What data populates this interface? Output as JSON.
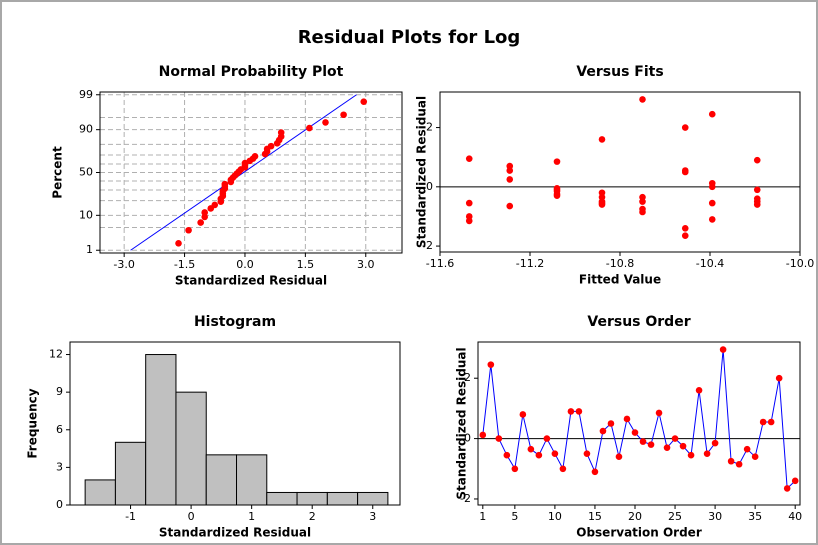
{
  "title": "Residual Plots for Log",
  "chart_data": [
    {
      "type": "probability",
      "title": "Normal Probability Plot",
      "x_label": "Standardized Residual",
      "y_label": "Percent",
      "x": [
        -1.65,
        -1.4,
        -1.1,
        -1.0,
        -1.0,
        -0.85,
        -0.75,
        -0.6,
        -0.6,
        -0.55,
        -0.55,
        -0.55,
        -0.5,
        -0.5,
        -0.5,
        -0.35,
        -0.35,
        -0.3,
        -0.25,
        -0.2,
        -0.15,
        -0.1,
        0.0,
        0.0,
        0.0,
        0.12,
        0.2,
        0.25,
        0.5,
        0.55,
        0.55,
        0.65,
        0.8,
        0.85,
        0.9,
        0.9,
        1.6,
        2.0,
        2.45,
        2.95
      ],
      "values": [
        1.7,
        4.2,
        6.7,
        9.2,
        11.6,
        14.1,
        16.6,
        19.1,
        21.5,
        24.0,
        26.5,
        29.0,
        31.4,
        33.9,
        36.4,
        38.9,
        41.3,
        43.8,
        46.3,
        48.8,
        51.2,
        53.7,
        56.2,
        58.7,
        61.1,
        63.6,
        66.1,
        68.6,
        71.0,
        73.5,
        76.0,
        78.5,
        80.9,
        83.4,
        85.9,
        88.4,
        90.8,
        93.3,
        95.8,
        98.3
      ],
      "color": "#ff0000",
      "fit_line": {
        "x": [
          -2.84,
          2.77
        ],
        "y": [
          1,
          99
        ],
        "color": "#0000ff"
      },
      "xlim": [
        -3.6,
        3.9
      ],
      "xticks": [
        {
          "value": -3,
          "label": "-3.0"
        },
        -1.5,
        {
          "value": 0,
          "label": "0.0"
        },
        1.5,
        {
          "value": 3,
          "label": "3.0"
        }
      ],
      "yscale": "probit",
      "ylim": [
        0.8,
        99.2
      ],
      "yticks": [
        1,
        10,
        50,
        90,
        99
      ],
      "y_minor_grid": [
        5,
        20,
        30,
        40,
        60,
        70,
        80,
        95
      ],
      "grid": true
    },
    {
      "type": "scatter",
      "title": "Versus Fits",
      "x_label": "Fitted Value",
      "y_label": "Standardized Residual",
      "x": [
        -11.47,
        -11.47,
        -11.47,
        -11.47,
        -11.29,
        -11.29,
        -11.29,
        -11.29,
        -11.08,
        -11.08,
        -11.08,
        -11.08,
        -11.08,
        -11.08,
        -10.88,
        -10.88,
        -10.88,
        -10.88,
        -10.88,
        -10.88,
        -10.7,
        -10.7,
        -10.7,
        -10.7,
        -10.7,
        -10.51,
        -10.51,
        -10.51,
        -10.51,
        -10.51,
        -10.39,
        -10.39,
        -10.39,
        -10.39,
        -10.39,
        -10.19,
        -10.19,
        -10.19,
        -10.19,
        -10.19
      ],
      "values": [
        0.95,
        -0.55,
        -1.0,
        -1.15,
        0.7,
        0.55,
        0.25,
        -0.65,
        0.85,
        -0.05,
        -0.1,
        -0.15,
        -0.25,
        -0.3,
        1.6,
        -0.2,
        -0.35,
        -0.5,
        -0.55,
        -0.6,
        2.95,
        -0.35,
        -0.5,
        -0.75,
        -0.85,
        2.0,
        0.55,
        0.5,
        -1.4,
        -1.65,
        2.45,
        0.12,
        0.0,
        -0.55,
        -1.1,
        0.9,
        -0.1,
        -0.4,
        -0.5,
        -0.6
      ],
      "color": "#ff0000",
      "reference_line": 0,
      "xlim": [
        -11.6,
        -10.0
      ],
      "xticks": [
        -11.6,
        -11.2,
        -10.8,
        -10.4,
        {
          "value": -10,
          "label": "-10.0"
        }
      ],
      "ylim": [
        -2.2,
        3.2
      ],
      "yticks": [
        -2,
        0,
        2
      ]
    },
    {
      "type": "histogram",
      "title": "Histogram",
      "x_label": "Standardized Residual",
      "y_label": "Frequency",
      "bins": [
        -1.75,
        -1.25,
        -0.75,
        -0.25,
        0.25,
        0.75,
        1.25,
        1.75,
        2.25,
        2.75,
        3.25
      ],
      "values": [
        2,
        5,
        12,
        9,
        4,
        4,
        1,
        1,
        1,
        1
      ],
      "color": "#c0c0c0",
      "xlim": [
        -2.0,
        3.45
      ],
      "xticks": [
        -1,
        0,
        1,
        2,
        3
      ],
      "ylim": [
        0,
        13
      ],
      "yticks": [
        0,
        3,
        6,
        9,
        12
      ]
    },
    {
      "type": "line",
      "title": "Versus Order",
      "x_label": "Observation Order",
      "y_label": "Standardized Residual",
      "x": [
        1,
        2,
        3,
        4,
        5,
        6,
        7,
        8,
        9,
        10,
        11,
        12,
        13,
        14,
        15,
        16,
        17,
        18,
        19,
        20,
        21,
        22,
        23,
        24,
        25,
        26,
        27,
        28,
        29,
        30,
        31,
        32,
        33,
        34,
        35,
        36,
        37,
        38,
        39,
        40
      ],
      "values": [
        0.12,
        2.45,
        0.0,
        -0.55,
        -1.0,
        0.8,
        -0.35,
        -0.55,
        0.0,
        -0.5,
        -1.0,
        0.9,
        0.9,
        -0.5,
        -1.1,
        0.25,
        0.5,
        -0.6,
        0.65,
        0.2,
        -0.1,
        -0.2,
        0.85,
        -0.3,
        0.0,
        -0.25,
        -0.55,
        1.6,
        -0.5,
        -0.15,
        2.95,
        -0.75,
        -0.85,
        -0.35,
        -0.6,
        0.55,
        0.55,
        2.0,
        -1.65,
        -1.4
      ],
      "color": "#ff0000",
      "line_color": "#0000ff",
      "reference_line": 0,
      "xlim": [
        0.4,
        40.6
      ],
      "xticks": [
        1,
        5,
        10,
        15,
        20,
        25,
        30,
        35,
        40
      ],
      "ylim": [
        -2.2,
        3.2
      ],
      "yticks": [
        -2,
        0,
        2
      ]
    }
  ]
}
